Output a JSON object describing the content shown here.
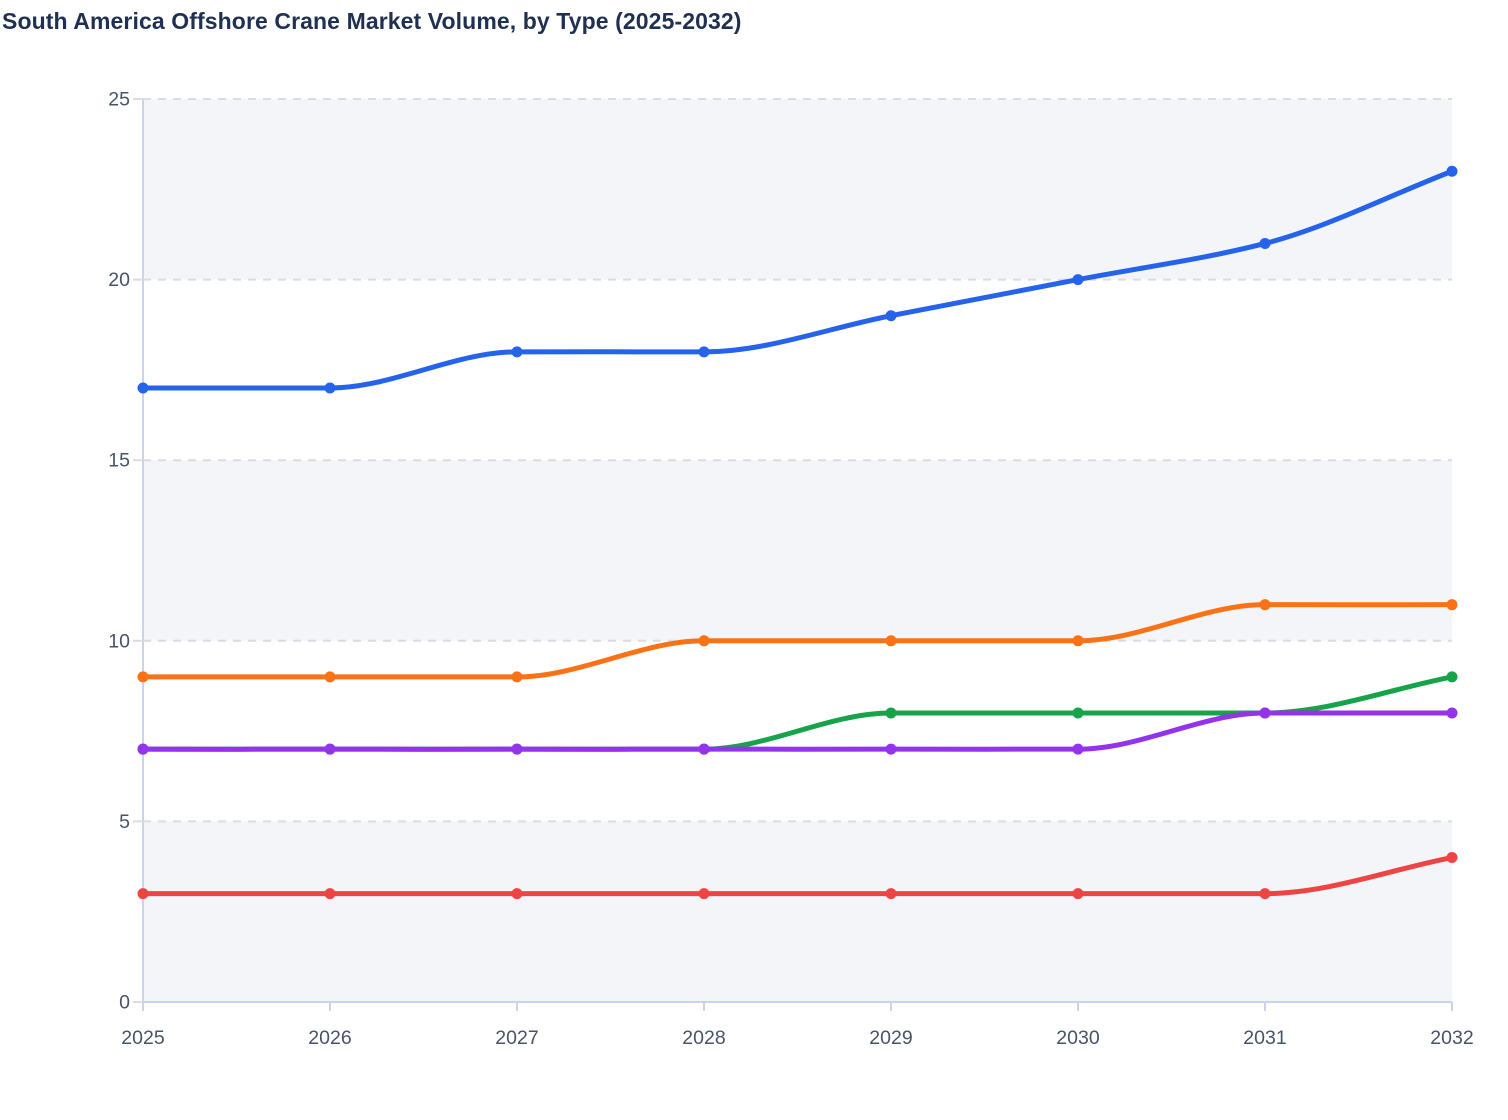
{
  "page": {
    "title": "South America Offshore Crane Market Volume, by Type (2025-2032)"
  },
  "chart_data": {
    "type": "line",
    "title": "South America Offshore Crane Market Volume, by Type (2025-2032)",
    "categories": [
      "2025",
      "2026",
      "2027",
      "2028",
      "2029",
      "2030",
      "2031",
      "2032"
    ],
    "series": [
      {
        "id": "blue",
        "color": "#2563eb",
        "values": [
          17,
          17,
          18,
          18,
          19,
          20,
          21,
          23
        ]
      },
      {
        "id": "orange",
        "color": "#f97316",
        "values": [
          9,
          9,
          9,
          10,
          10,
          10,
          11,
          11
        ]
      },
      {
        "id": "green",
        "color": "#16a34a",
        "values": [
          7,
          7,
          7,
          7,
          8,
          8,
          8,
          9
        ]
      },
      {
        "id": "purple",
        "color": "#9333ea",
        "values": [
          7,
          7,
          7,
          7,
          7,
          7,
          8,
          8
        ]
      },
      {
        "id": "red",
        "color": "#ef4444",
        "values": [
          3,
          3,
          3,
          3,
          3,
          3,
          3,
          4
        ]
      }
    ],
    "xlabel": "",
    "ylabel": "",
    "ylim": [
      0,
      25
    ],
    "y_ticks": [
      0,
      5,
      10,
      15,
      20,
      25
    ],
    "grid": "dashed-horizontal",
    "legend": "none",
    "curve": "monotone",
    "style": {
      "title_color": "#1f3050",
      "tick_label_color": "#475467",
      "axis_color": "#c9d3ec",
      "gridline_color": "#d9dce3",
      "band_fill": "#f3f5f9",
      "band_ranges": [
        [
          0,
          5
        ],
        [
          10,
          15
        ],
        [
          20,
          25
        ]
      ],
      "plot_bg": "#ffffff",
      "line_width": 5,
      "marker_radius": 5.5
    }
  }
}
